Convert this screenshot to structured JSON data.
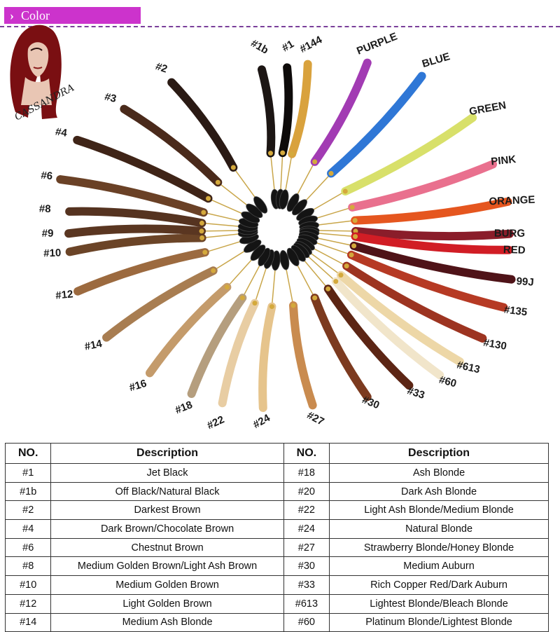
{
  "header": {
    "title": "Color",
    "chevron": "›"
  },
  "logo": {
    "text": "CASSANDRA",
    "icon": "portrait-logo-icon"
  },
  "colors": {
    "header_bg": "#cc33cc",
    "divider": "#7a3f9a"
  },
  "swatches": [
    {
      "label": "#1b",
      "color": "#1c1614"
    },
    {
      "label": "#1",
      "color": "#0e0b0a"
    },
    {
      "label": "#144",
      "color": "#d9a23d"
    },
    {
      "label": "PURPLE",
      "color": "#a23bb3"
    },
    {
      "label": "BLUE",
      "color": "#2f77d6"
    },
    {
      "label": "GREEN",
      "color": "#d8e06a"
    },
    {
      "label": "PINK",
      "color": "#e9708e"
    },
    {
      "label": "ORANGE",
      "color": "#e5561f"
    },
    {
      "label": "BURG",
      "color": "#8a1d2a"
    },
    {
      "label": "RED",
      "color": "#d11d25"
    },
    {
      "label": "99J",
      "color": "#4f1318"
    },
    {
      "label": "#135",
      "color": "#b63a24"
    },
    {
      "label": "#130",
      "color": "#9d3421"
    },
    {
      "label": "#613",
      "color": "#edd7a7"
    },
    {
      "label": "#60",
      "color": "#f1e5ca"
    },
    {
      "label": "#33",
      "color": "#5c2514"
    },
    {
      "label": "#30",
      "color": "#7c3a1f"
    },
    {
      "label": "#27",
      "color": "#c98b4f"
    },
    {
      "label": "#24",
      "color": "#e6c48c"
    },
    {
      "label": "#22",
      "color": "#e8cda3"
    },
    {
      "label": "#18",
      "color": "#b59e7e"
    },
    {
      "label": "#16",
      "color": "#c49b6b"
    },
    {
      "label": "#14",
      "color": "#a87d51"
    },
    {
      "label": "#12",
      "color": "#9c6a3f"
    },
    {
      "label": "#10",
      "color": "#6b4427"
    },
    {
      "label": "#9",
      "color": "#5a3621"
    },
    {
      "label": "#8",
      "color": "#553320"
    },
    {
      "label": "#6",
      "color": "#6a4126"
    },
    {
      "label": "#4",
      "color": "#3f2417"
    },
    {
      "label": "#3",
      "color": "#4a2a1b"
    },
    {
      "label": "#2",
      "color": "#2a1a14"
    }
  ],
  "table": {
    "headers": [
      "NO.",
      "Description",
      "NO.",
      "Description"
    ],
    "rows": [
      [
        "#1",
        "Jet Black",
        "#18",
        "Ash Blonde"
      ],
      [
        "#1b",
        "Off Black/Natural Black",
        "#20",
        "Dark Ash Blonde"
      ],
      [
        "#2",
        "Darkest Brown",
        "#22",
        "Light Ash Blonde/Medium Blonde"
      ],
      [
        "#4",
        "Dark Brown/Chocolate Brown",
        "#24",
        "Natural Blonde"
      ],
      [
        "#6",
        "Chestnut Brown",
        "#27",
        "Strawberry Blonde/Honey Blonde"
      ],
      [
        "#8",
        "Medium Golden Brown/Light Ash Brown",
        "#30",
        "Medium Auburn"
      ],
      [
        "#10",
        "Medium Golden Brown",
        "#33",
        "Rich Copper Red/Dark Auburn"
      ],
      [
        "#12",
        "Light Golden Brown",
        "#613",
        "Lightest Blonde/Bleach Blonde"
      ],
      [
        "#14",
        "Medium Ash Blonde",
        "#60",
        "Platinum Blonde/Lightest Blonde"
      ]
    ]
  }
}
